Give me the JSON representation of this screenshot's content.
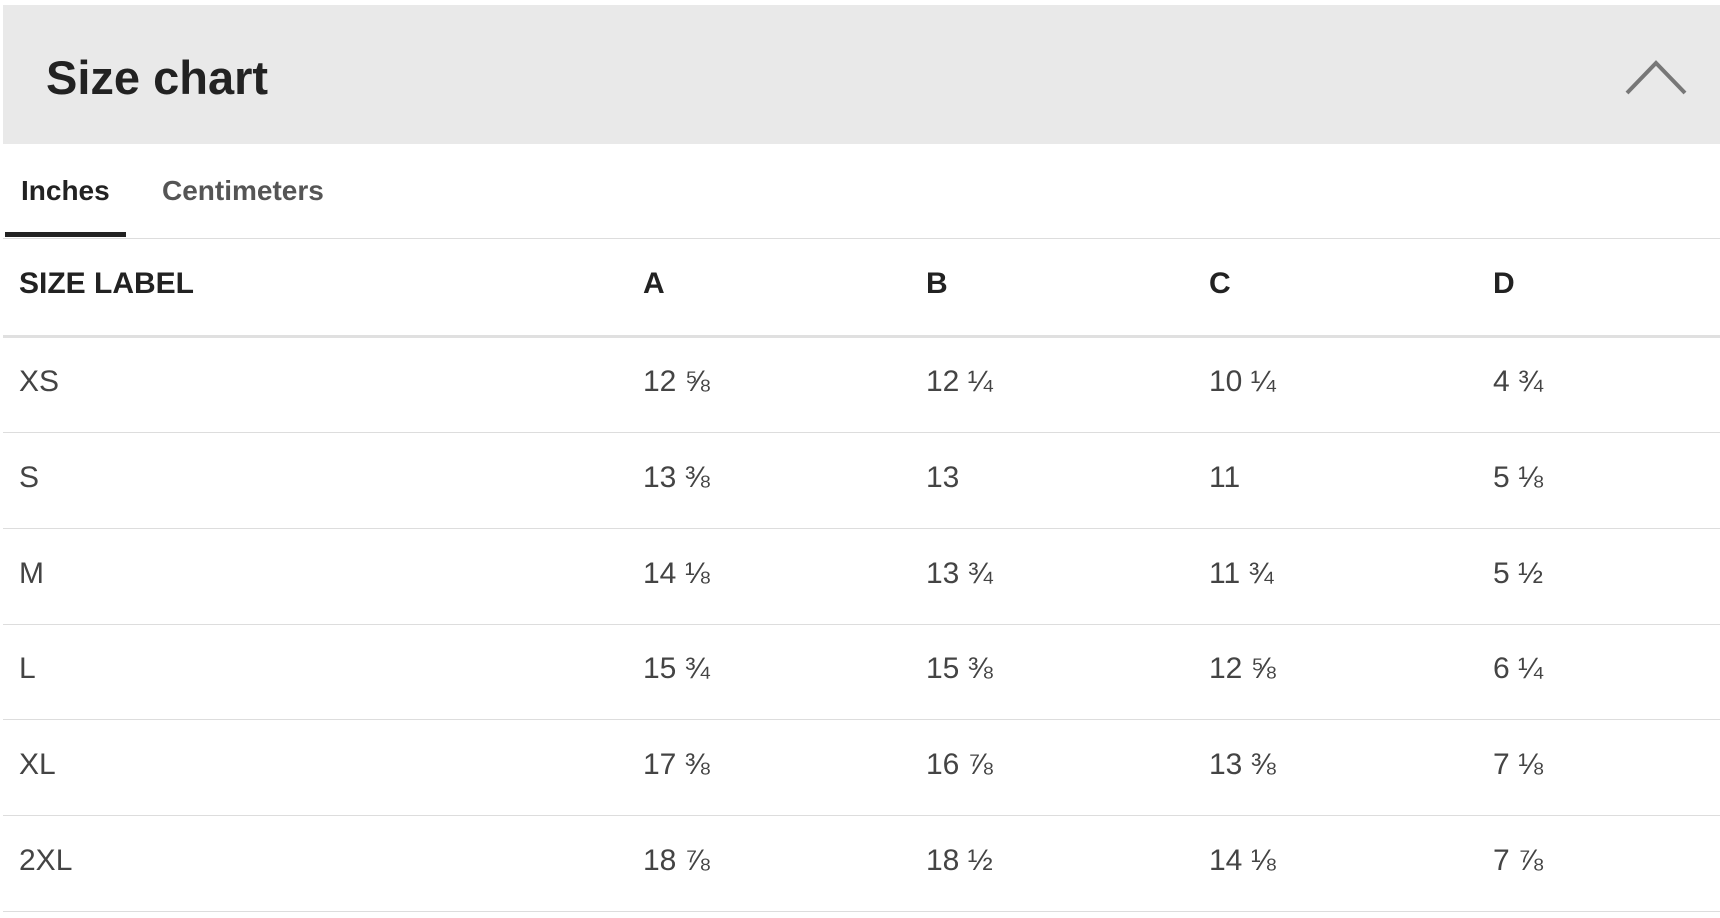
{
  "header": {
    "title": "Size chart"
  },
  "tabs": [
    "Inches",
    "Centimeters"
  ],
  "table": {
    "columns": [
      "SIZE LABEL",
      "A",
      "B",
      "C",
      "D"
    ],
    "rows": [
      [
        "XS",
        "12 ⅝",
        "12 ¼",
        "10 ¼",
        "4 ¾"
      ],
      [
        "S",
        "13 ⅜",
        "13",
        "11",
        "5 ⅛"
      ],
      [
        "M",
        "14 ⅛",
        "13 ¾",
        "11 ¾",
        "5 ½"
      ],
      [
        "L",
        "15 ¾",
        "15 ⅜",
        "12 ⅝",
        "6 ¼"
      ],
      [
        "XL",
        "17 ⅜",
        "16 ⅞",
        "13 ⅜",
        "7 ⅛"
      ],
      [
        "2XL",
        "18 ⅞",
        "18 ½",
        "14 ⅛",
        "7 ⅞"
      ]
    ]
  }
}
